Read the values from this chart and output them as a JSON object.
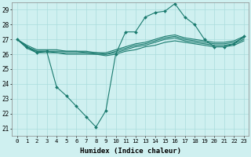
{
  "xlabel": "Humidex (Indice chaleur)",
  "background_color": "#cff0f0",
  "grid_color": "#aadddd",
  "line_color": "#1a7a6e",
  "x_ticks": [
    0,
    1,
    2,
    3,
    4,
    5,
    6,
    7,
    8,
    9,
    10,
    11,
    12,
    13,
    14,
    15,
    16,
    17,
    18,
    19,
    20,
    21,
    22,
    23
  ],
  "ylim": [
    20.5,
    29.5
  ],
  "xlim": [
    -0.5,
    23.5
  ],
  "yticks": [
    21,
    22,
    23,
    24,
    25,
    26,
    27,
    28,
    29
  ],
  "series": [
    {
      "x": [
        0,
        1,
        2,
        3,
        4,
        5,
        6,
        7,
        8,
        9,
        10,
        11,
        12,
        13,
        14,
        15,
        16,
        17,
        18,
        19,
        20,
        21,
        22,
        23
      ],
      "y": [
        27.0,
        26.5,
        26.1,
        26.2,
        23.8,
        23.2,
        22.5,
        21.8,
        21.1,
        22.2,
        26.0,
        27.5,
        27.5,
        28.5,
        28.8,
        28.9,
        29.4,
        28.5,
        28.0,
        27.0,
        26.5,
        26.5,
        26.7,
        27.2
      ],
      "marker": "D",
      "markersize": 2.0,
      "linewidth": 0.8
    },
    {
      "x": [
        0,
        1,
        2,
        3,
        4,
        5,
        6,
        7,
        8,
        9,
        10,
        11,
        12,
        13,
        14,
        15,
        16,
        17,
        18,
        19,
        20,
        21,
        22,
        23
      ],
      "y": [
        27.0,
        26.6,
        26.3,
        26.3,
        26.3,
        26.2,
        26.2,
        26.2,
        26.1,
        26.1,
        26.3,
        26.5,
        26.7,
        26.8,
        27.0,
        27.2,
        27.3,
        27.1,
        27.0,
        26.9,
        26.8,
        26.8,
        26.9,
        27.2
      ],
      "marker": null,
      "markersize": 0,
      "linewidth": 0.8
    },
    {
      "x": [
        0,
        1,
        2,
        3,
        4,
        5,
        6,
        7,
        8,
        9,
        10,
        11,
        12,
        13,
        14,
        15,
        16,
        17,
        18,
        19,
        20,
        21,
        22,
        23
      ],
      "y": [
        27.0,
        26.5,
        26.2,
        26.2,
        26.2,
        26.2,
        26.2,
        26.1,
        26.1,
        26.0,
        26.2,
        26.4,
        26.6,
        26.7,
        26.9,
        27.1,
        27.2,
        27.0,
        26.9,
        26.8,
        26.7,
        26.7,
        26.8,
        27.1
      ],
      "marker": null,
      "markersize": 0,
      "linewidth": 0.8
    },
    {
      "x": [
        0,
        1,
        2,
        3,
        4,
        5,
        6,
        7,
        8,
        9,
        10,
        11,
        12,
        13,
        14,
        15,
        16,
        17,
        18,
        19,
        20,
        21,
        22,
        23
      ],
      "y": [
        27.0,
        26.5,
        26.2,
        26.2,
        26.1,
        26.1,
        26.1,
        26.1,
        26.0,
        26.0,
        26.1,
        26.3,
        26.5,
        26.6,
        26.8,
        27.0,
        27.1,
        26.9,
        26.8,
        26.7,
        26.6,
        26.6,
        26.7,
        27.0
      ],
      "marker": null,
      "markersize": 0,
      "linewidth": 0.8
    },
    {
      "x": [
        0,
        1,
        2,
        3,
        4,
        5,
        6,
        7,
        8,
        9,
        10,
        11,
        12,
        13,
        14,
        15,
        16,
        17,
        18,
        19,
        20,
        21,
        22,
        23
      ],
      "y": [
        27.0,
        26.4,
        26.1,
        26.1,
        26.1,
        26.0,
        26.0,
        26.0,
        26.0,
        25.9,
        26.0,
        26.2,
        26.3,
        26.5,
        26.6,
        26.8,
        26.9,
        26.8,
        26.7,
        26.6,
        26.5,
        26.5,
        26.6,
        26.9
      ],
      "marker": null,
      "markersize": 0,
      "linewidth": 0.8
    }
  ]
}
